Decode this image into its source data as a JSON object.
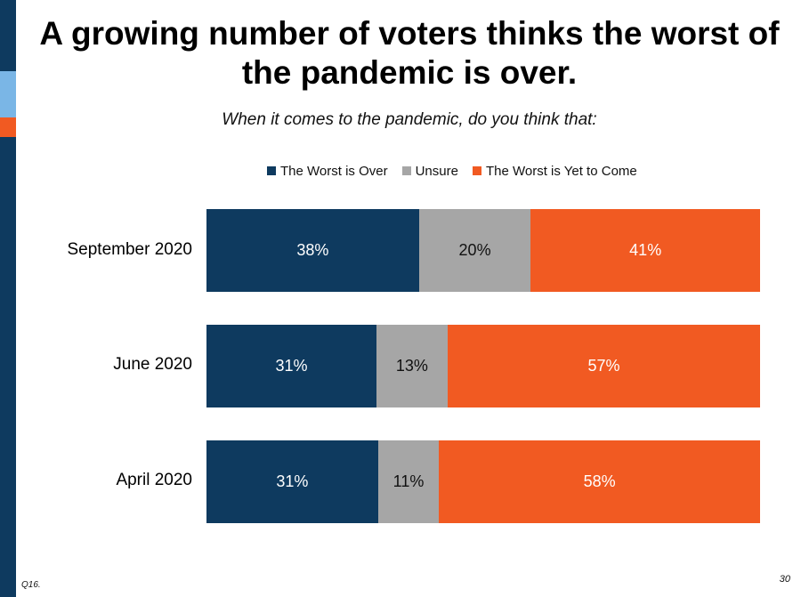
{
  "slide": {
    "title": "A growing number of voters thinks the worst of the pandemic is over.",
    "subtitle": "When it comes to the pandemic, do you think that:",
    "footnote": "Q16.",
    "page_number": "30"
  },
  "colors": {
    "worst_over": "#0e3a5f",
    "unsure": "#a6a6a6",
    "yet_to_come": "#f15a22",
    "side_bar": "#0e3a5f",
    "side_accent_blue": "#7ab6e6",
    "side_accent_orange": "#f15a22"
  },
  "chart_data": {
    "type": "bar",
    "orientation": "horizontal",
    "stacked": true,
    "categories": [
      "September 2020",
      "June 2020",
      "April 2020"
    ],
    "series": [
      {
        "name": "The Worst is Over",
        "values": [
          38,
          31,
          31
        ],
        "labels": [
          "38%",
          "31%",
          "31%"
        ],
        "color": "#0e3a5f"
      },
      {
        "name": "Unsure",
        "values": [
          20,
          13,
          11
        ],
        "labels": [
          "20%",
          "13%",
          "11%"
        ],
        "color": "#a6a6a6"
      },
      {
        "name": "The Worst is Yet to Come",
        "values": [
          41,
          57,
          58
        ],
        "labels": [
          "41%",
          "57%",
          "58%"
        ],
        "color": "#f15a22"
      }
    ],
    "legend_position": "top",
    "grid": false
  }
}
